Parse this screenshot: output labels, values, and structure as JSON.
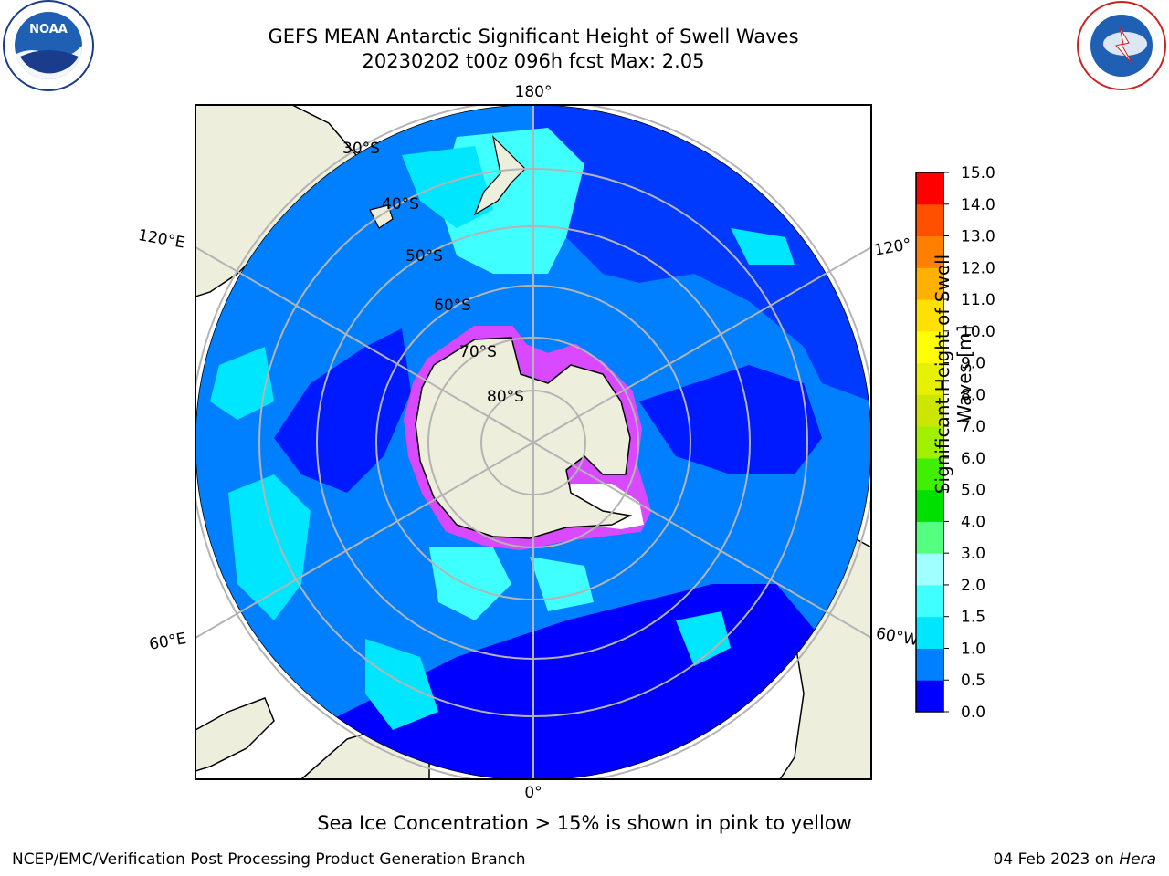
{
  "title": {
    "line1": "GEFS MEAN Antarctic Significant Height of Swell Waves",
    "line2": "20230202 t00z 096h fcst   Max: 2.05"
  },
  "map": {
    "projection": "south-polar-stereographic",
    "lon_labels": {
      "top": "180°",
      "bottom": "0°",
      "upper_left": "120°E",
      "upper_right": "120°",
      "lower_left": "60°E",
      "lower_right": "60°W"
    },
    "lat_labels": [
      "30°S",
      "40°S",
      "50°S",
      "60°S",
      "70°S",
      "80°S"
    ],
    "colors": {
      "land": "#eeeedd",
      "ocean_0_0.5": "#0000ff",
      "ocean_0.5_1.0": "#0080ff",
      "ocean_1.0_1.5": "#00e6ff",
      "ocean_1.5_2.0": "#40ffff",
      "grid": "#b4b4b4",
      "sea_ice_edge": "#ff40ff"
    }
  },
  "colorbar": {
    "label_line1": "Significant Height of Swell",
    "label_line2": "Waves [m]",
    "ticks": [
      "0.0",
      "0.5",
      "1.0",
      "1.5",
      "2.0",
      "3.0",
      "4.0",
      "5.0",
      "6.0",
      "7.0",
      "8.0",
      "9.0",
      "10.0",
      "11.0",
      "12.0",
      "13.0",
      "14.0",
      "15.0"
    ],
    "colors": [
      "#0000ff",
      "#0080ff",
      "#00e6ff",
      "#40ffff",
      "#a0ffff",
      "#55ff80",
      "#00e000",
      "#40f000",
      "#a0f000",
      "#cce600",
      "#e6f000",
      "#ffff00",
      "#ffe000",
      "#ffb000",
      "#ff8000",
      "#ff5000",
      "#ff0000"
    ]
  },
  "caption": "Sea Ice Concentration > 15% is shown in pink to yellow",
  "footer": {
    "left": "NCEP/EMC/Verification Post Processing Product Generation Branch",
    "right_date": "04 Feb 2023 on ",
    "right_host": "Hera"
  },
  "logos": {
    "left": "NOAA",
    "right": "NATIONAL WEATHER SERVICE"
  }
}
